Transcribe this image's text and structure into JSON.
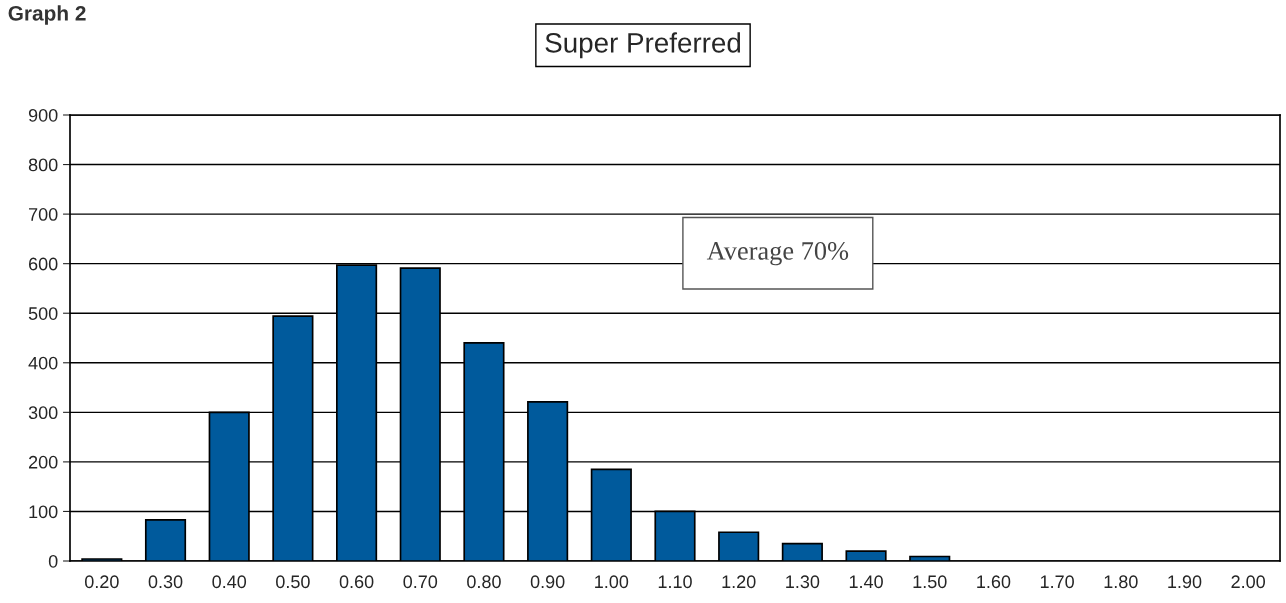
{
  "chart_data": {
    "type": "bar",
    "title": "Super Preferred",
    "annotations": [
      "Graph 2",
      "Average 70%"
    ],
    "categories": [
      "0.20",
      "0.30",
      "0.40",
      "0.50",
      "0.60",
      "0.70",
      "0.80",
      "0.90",
      "1.00",
      "1.10",
      "1.20",
      "1.30",
      "1.40",
      "1.50",
      "1.60",
      "1.70",
      "1.80",
      "1.90",
      "2.00"
    ],
    "values": [
      4,
      83,
      300,
      494,
      597,
      591,
      440,
      321,
      185,
      100,
      58,
      35,
      20,
      9,
      0,
      0,
      0,
      0,
      0
    ],
    "color": "#005a9c",
    "ylim": [
      0,
      900
    ],
    "yticks": [
      0,
      100,
      200,
      300,
      400,
      500,
      600,
      700,
      800,
      900
    ],
    "grid": "y",
    "legend": false
  }
}
